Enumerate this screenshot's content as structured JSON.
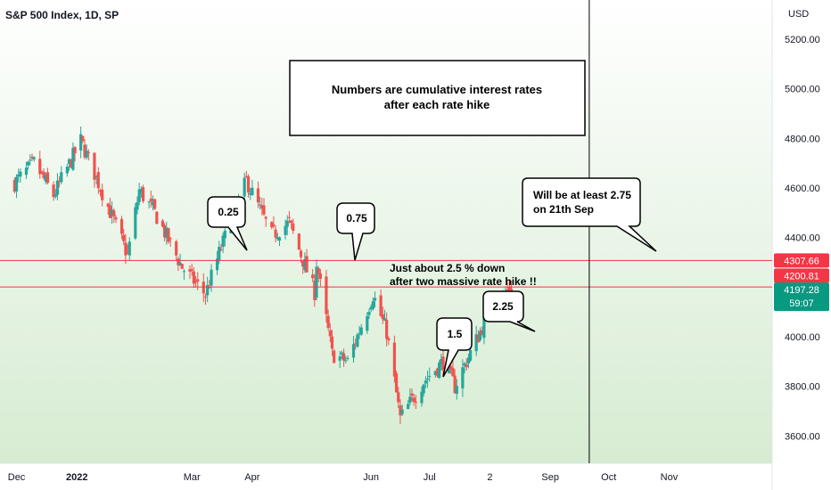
{
  "colors": {
    "background_top": "#ffffff",
    "background_bottom": "#d6ecd2",
    "up": "#26a69a",
    "down": "#ef5350",
    "level_line": "#f23645",
    "last_price_badge": "#089981",
    "axis_text": "#131722",
    "vertical_marker": "#000000"
  },
  "chart_data": {
    "type": "candlestick",
    "title": "S&P 500 Index, 1D, SP",
    "currency": "USD",
    "ylim": [
      3510,
      5330
    ],
    "y_ticks": [
      "5200.00",
      "5000.00",
      "4800.00",
      "4600.00",
      "4400.00",
      "4000.00",
      "3800.00",
      "3600.00"
    ],
    "x_ticks": [
      "Dec",
      "2022",
      "Mar",
      "Apr",
      "Jun",
      "Jul",
      "2",
      "Sep",
      "Oct",
      "Nov"
    ],
    "horizontal_levels": [
      {
        "value": 4307.66,
        "label": "4307.66"
      },
      {
        "value": 4200.81,
        "label": "4200.81"
      }
    ],
    "last_price": {
      "value": 4197.28,
      "label": "4197.28",
      "countdown": "59:07"
    },
    "vertical_marker_date": "21th Sep",
    "anchors": [
      {
        "date": "2021-11-30",
        "close": 4620
      },
      {
        "date": "2021-12-10",
        "close": 4700
      },
      {
        "date": "2021-12-20",
        "close": 4570
      },
      {
        "date": "2022-01-03",
        "close": 4790
      },
      {
        "date": "2022-01-10",
        "close": 4660
      },
      {
        "date": "2022-01-27",
        "close": 4330
      },
      {
        "date": "2022-02-02",
        "close": 4590
      },
      {
        "date": "2022-02-10",
        "close": 4500
      },
      {
        "date": "2022-02-24",
        "close": 4280
      },
      {
        "date": "2022-03-08",
        "close": 4170
      },
      {
        "date": "2022-03-16",
        "close": 4360
      },
      {
        "date": "2022-03-29",
        "close": 4630
      },
      {
        "date": "2022-04-11",
        "close": 4410
      },
      {
        "date": "2022-04-20",
        "close": 4460
      },
      {
        "date": "2022-05-03",
        "close": 4180
      },
      {
        "date": "2022-05-04",
        "close": 4300
      },
      {
        "date": "2022-05-12",
        "close": 3930
      },
      {
        "date": "2022-05-20",
        "close": 3900
      },
      {
        "date": "2022-06-02",
        "close": 4170
      },
      {
        "date": "2022-06-09",
        "close": 4020
      },
      {
        "date": "2022-06-16",
        "close": 3670
      },
      {
        "date": "2022-06-28",
        "close": 3820
      },
      {
        "date": "2022-07-08",
        "close": 3900
      },
      {
        "date": "2022-07-14",
        "close": 3800
      },
      {
        "date": "2022-07-27",
        "close": 4020
      },
      {
        "date": "2022-08-01",
        "close": 4120
      },
      {
        "date": "2022-08-12",
        "close": 4197
      }
    ],
    "callouts": [
      {
        "label": "0.25",
        "date": "2022-03-16"
      },
      {
        "label": "0.75",
        "date": "2022-05-04"
      },
      {
        "label": "1.5",
        "date": "2022-06-15"
      },
      {
        "label": "2.25",
        "date": "2022-07-27"
      }
    ]
  },
  "annotations": {
    "box_line1": "Numbers are cumulative interest rates",
    "box_line2": "after each rate hike",
    "drop_note_line1": "Just about 2.5 % down",
    "drop_note_line2": "after two massive rate hike !!",
    "sep_note_line1": "Will be at least 2.75",
    "sep_note_line2": "on 21th Sep"
  }
}
